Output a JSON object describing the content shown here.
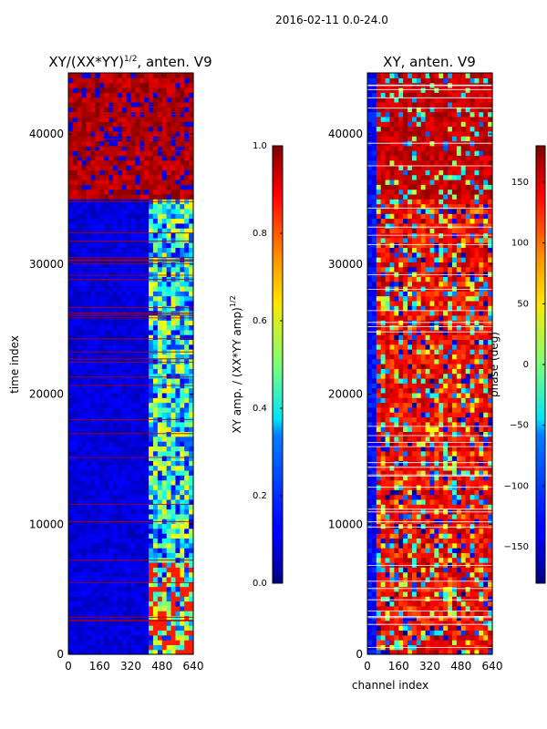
{
  "figure": {
    "suptitle": "2016-02-11 0.0-24.0"
  },
  "chart_data": [
    {
      "type": "heatmap",
      "title": "XY/(XX*YY)",
      "title_superscript": "1/2",
      "title_suffix": ", anten. V9",
      "xlabel": "",
      "ylabel": "time index",
      "xlim": [
        0,
        640
      ],
      "ylim": [
        0,
        44700
      ],
      "xticks": [
        0,
        160,
        320,
        480,
        640
      ],
      "yticks": [
        0,
        10000,
        20000,
        30000,
        40000
      ],
      "colormap": "jet",
      "colorbar": {
        "label": "XY amp. / (XX*YY amp)",
        "label_superscript": "1/2",
        "range": [
          0.0,
          1.0
        ],
        "ticks": [
          "0.0",
          "0.2",
          "0.4",
          "0.6",
          "0.8",
          "1.0"
        ]
      },
      "description_values": {
        "saturated_time_range": [
          35000,
          44700
        ],
        "background_level": 0.05,
        "active_channel_range": [
          400,
          640
        ]
      }
    },
    {
      "type": "heatmap",
      "title": "XY, anten. V9",
      "xlabel": "channel index",
      "ylabel": "",
      "xlim": [
        0,
        640
      ],
      "ylim": [
        0,
        44700
      ],
      "xticks": [
        0,
        160,
        320,
        480,
        640
      ],
      "yticks": [
        0,
        10000,
        20000,
        30000,
        40000
      ],
      "colormap": "jet",
      "colorbar": {
        "label": "phase (deg)",
        "range": [
          -180,
          180
        ],
        "ticks": [
          "−150",
          "−100",
          "−50",
          "0",
          "50",
          "100",
          "150"
        ]
      },
      "description_values": {
        "saturated_time_range": [
          35000,
          44700
        ],
        "dominant_phase": 150
      }
    }
  ]
}
